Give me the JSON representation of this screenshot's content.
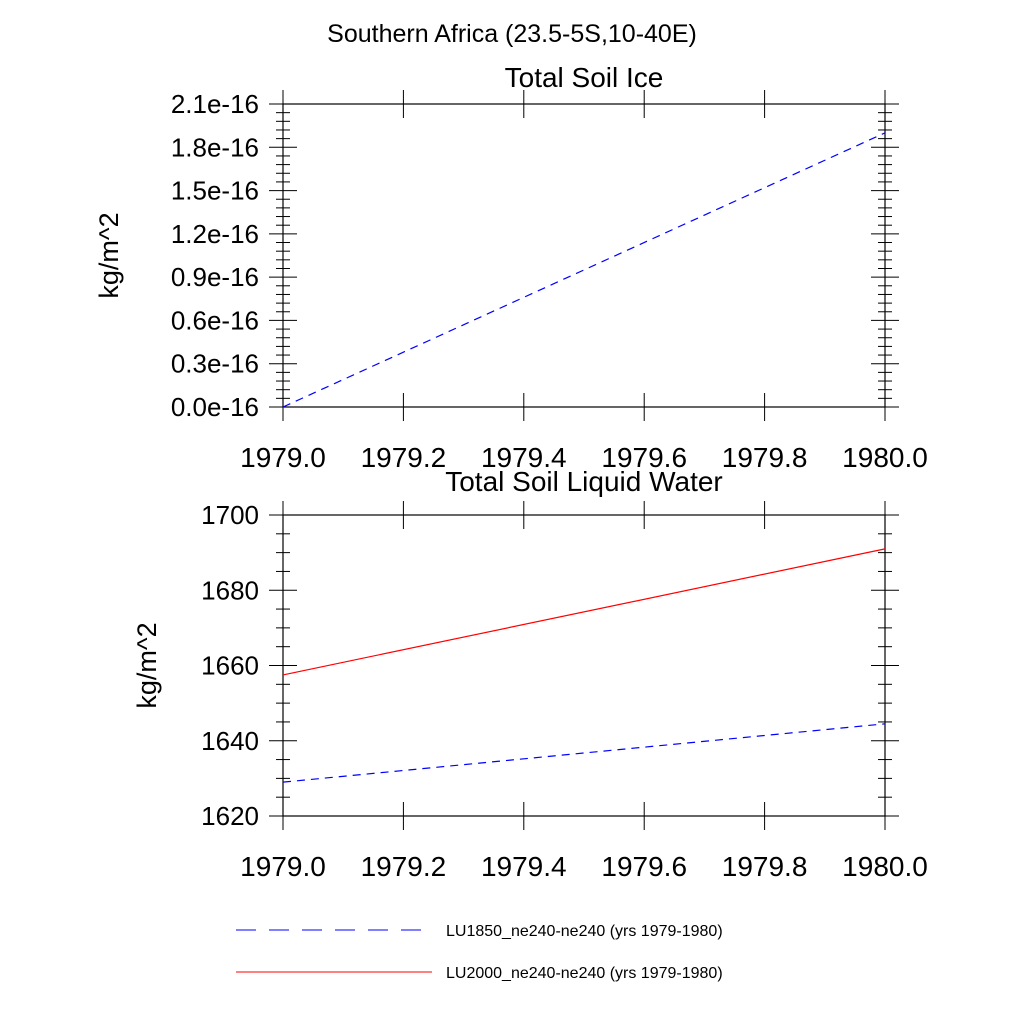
{
  "figure": {
    "title": "Southern Africa (23.5-5S,10-40E)"
  },
  "chart_data": [
    {
      "type": "line",
      "title": "Total Soil Ice",
      "xlabel": "",
      "ylabel": "kg/m^2",
      "xlim": [
        1979.0,
        1980.0
      ],
      "ylim": [
        0.0,
        2.1e-16
      ],
      "xticks": [
        "1979.0",
        "1979.2",
        "1979.4",
        "1979.6",
        "1979.8",
        "1980.0"
      ],
      "yticks": [
        "0.0e-16",
        "0.3e-16",
        "0.6e-16",
        "0.9e-16",
        "1.2e-16",
        "1.5e-16",
        "1.8e-16",
        "2.1e-16"
      ],
      "grid": false,
      "series": [
        {
          "name": "LU1850_ne240-ne240 (yrs 1979-1980)",
          "color": "#0000ff",
          "dash": "dashed",
          "x": [
            1979.0,
            1980.0
          ],
          "y": [
            0.0,
            1.9e-16
          ]
        }
      ]
    },
    {
      "type": "line",
      "title": "Total Soil Liquid Water",
      "xlabel": "",
      "ylabel": "kg/m^2",
      "xlim": [
        1979.0,
        1980.0
      ],
      "ylim": [
        1620,
        1700
      ],
      "xticks": [
        "1979.0",
        "1979.2",
        "1979.4",
        "1979.6",
        "1979.8",
        "1980.0"
      ],
      "yticks": [
        "1620",
        "1640",
        "1660",
        "1680",
        "1700"
      ],
      "grid": false,
      "series": [
        {
          "name": "LU1850_ne240-ne240 (yrs 1979-1980)",
          "color": "#0000ff",
          "dash": "dashed",
          "x": [
            1979.0,
            1980.0
          ],
          "y": [
            1629.0,
            1644.5
          ]
        },
        {
          "name": "LU2000_ne240-ne240 (yrs 1979-1980)",
          "color": "#ff0000",
          "dash": "solid",
          "x": [
            1979.0,
            1980.0
          ],
          "y": [
            1657.5,
            1691.0
          ]
        }
      ]
    }
  ],
  "legend": {
    "placement": "bottom-center",
    "entries": [
      {
        "label": "LU1850_ne240-ne240 (yrs 1979-1980)",
        "color": "#0000ff",
        "dash": "dashed"
      },
      {
        "label": "LU2000_ne240-ne240 (yrs 1979-1980)",
        "color": "#ff0000",
        "dash": "solid"
      }
    ]
  }
}
